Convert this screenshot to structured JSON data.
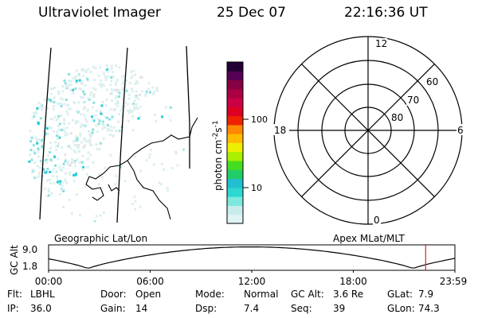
{
  "header": {
    "instrument": "Ultraviolet Imager",
    "date": "25 Dec 07",
    "time": "22:16:36 UT"
  },
  "colorbar": {
    "unit_label": "photon cm",
    "unit_exp1": "-2",
    "unit_mid": "s",
    "unit_exp2": "-1",
    "tick_high": "100",
    "tick_low": "10",
    "colors": [
      "#dff3f3",
      "#c8ecec",
      "#7de8e0",
      "#2cd8d0",
      "#20c0d0",
      "#22cc66",
      "#44dd22",
      "#aaee00",
      "#eeee00",
      "#ffbb00",
      "#ff8800",
      "#ee2200",
      "#dd0022",
      "#cc0044",
      "#aa0044",
      "#880044",
      "#550055",
      "#220033"
    ]
  },
  "polar": {
    "label_top": "12",
    "label_bottom": "0",
    "label_left": "18",
    "label_right": "6",
    "ring_labels": [
      "60",
      "70",
      "80"
    ]
  },
  "timeline": {
    "ylabel": "GC Alt",
    "ytick_top": "9.0",
    "ytick_bottom": "1.8",
    "left_caption": "Geographic Lat/Lon",
    "right_caption": "Apex MLat/MLT",
    "xticks": [
      "00:00",
      "06:00",
      "12:00",
      "18:00",
      "23:59"
    ],
    "marker_fraction": 0.928
  },
  "info": {
    "row1": [
      {
        "key": "Flt:",
        "value": "LBHL"
      },
      {
        "key": "Door:",
        "value": "Open"
      },
      {
        "key": "Mode:",
        "value": "Normal"
      },
      {
        "key": "GC Alt:",
        "value": "3.6 Re"
      },
      {
        "key": "GLat:",
        "value": "7.9"
      }
    ],
    "row2": [
      {
        "key": "IP:",
        "value": "36.0"
      },
      {
        "key": "Gain:",
        "value": "14"
      },
      {
        "key": "Dsp:",
        "value": "7.4"
      },
      {
        "key": "Seq:",
        "value": "39"
      },
      {
        "key": "GLon:",
        "value": "74.3"
      }
    ]
  }
}
